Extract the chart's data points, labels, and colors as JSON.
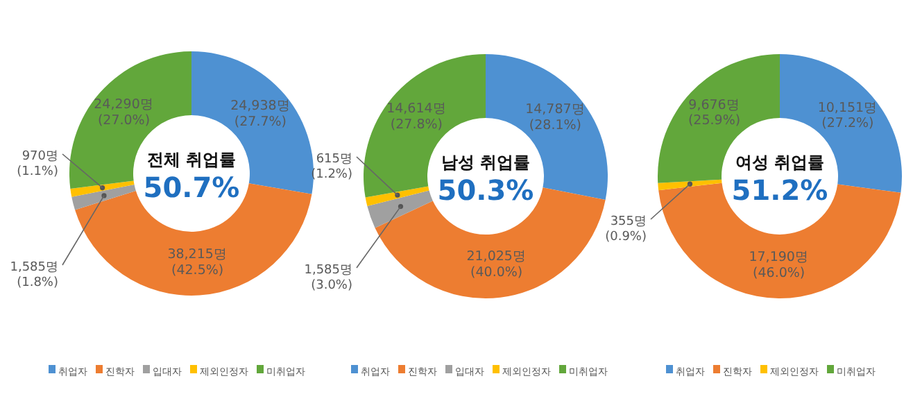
{
  "chart_data": [
    {
      "type": "donut",
      "title": "전체 취업률",
      "subtitle": "50.7%",
      "legend": "bottom",
      "categories": [
        "취업자",
        "진학자",
        "입대자",
        "제외인정자",
        "미취업자"
      ],
      "values": [
        24938,
        38215,
        1585,
        970,
        24290
      ],
      "colors": [
        "#4e91d2",
        "#ed7d31",
        "#a0a0a0",
        "#ffc000",
        "#62a73b"
      ],
      "value_labels": [
        "24,938명\n(27.7%)",
        "38,215명\n(42.5%)",
        "1,585명\n(1.8%)",
        "970명\n(1.1%)",
        "24,290명\n(27.0%)"
      ]
    },
    {
      "type": "donut",
      "title": "남성 취업률",
      "subtitle": "50.3%",
      "legend": "bottom",
      "categories": [
        "취업자",
        "진학자",
        "입대자",
        "제외인정자",
        "미취업자"
      ],
      "values": [
        14787,
        21025,
        1585,
        615,
        14614
      ],
      "colors": [
        "#4e91d2",
        "#ed7d31",
        "#a0a0a0",
        "#ffc000",
        "#62a73b"
      ],
      "value_labels": [
        "14,787명\n(28.1%)",
        "21,025명\n(40.0%)",
        "1,585명\n(3.0%)",
        "615명\n(1.2%)",
        "14,614명\n(27.8%)"
      ]
    },
    {
      "type": "donut",
      "title": "여성 취업률",
      "subtitle": "51.2%",
      "legend": "bottom",
      "categories": [
        "취업자",
        "진학자",
        "제외인정자",
        "미취업자"
      ],
      "values": [
        10151,
        17190,
        355,
        9676
      ],
      "colors": [
        "#4e91d2",
        "#ed7d31",
        "#ffc000",
        "#62a73b"
      ],
      "value_labels": [
        "10,151명\n(27.2%)",
        "17,190명\n(46.0%)",
        "355명\n(0.9%)",
        "9,676명\n(25.9%)"
      ]
    }
  ]
}
